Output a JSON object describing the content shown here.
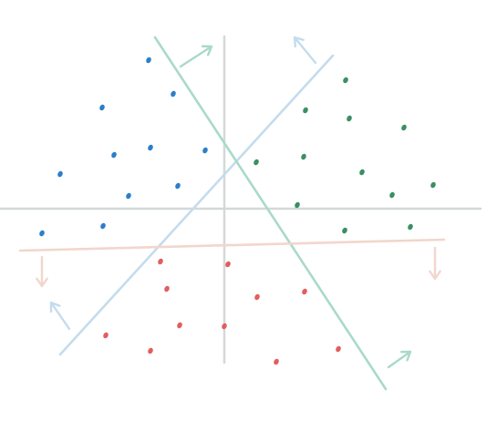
{
  "colors": {
    "background": "#ffffff",
    "axis": "#d4d8d8",
    "blue_class": "#2a7fc8",
    "green_class": "#3a8f63",
    "red_class": "#e35d5d",
    "blue_boundary": "#c4dced",
    "green_boundary": "#a9dac9",
    "red_boundary": "#f2d6cc"
  },
  "classes": [
    {
      "name": "blue",
      "color": "#2a7fc8",
      "points": [
        [
          -83,
          163
        ],
        [
          -56,
          126
        ],
        [
          -134,
          111
        ],
        [
          -121,
          59
        ],
        [
          -81,
          67
        ],
        [
          -21,
          64
        ],
        [
          -180,
          38
        ],
        [
          -105,
          14
        ],
        [
          -51,
          25
        ],
        [
          -133,
          -19
        ],
        [
          -200,
          -27
        ]
      ]
    },
    {
      "name": "green",
      "color": "#3a8f63",
      "points": [
        [
          133,
          141
        ],
        [
          89,
          108
        ],
        [
          137,
          99
        ],
        [
          197,
          89
        ],
        [
          35,
          51
        ],
        [
          87,
          57
        ],
        [
          151,
          40
        ],
        [
          229,
          26
        ],
        [
          184,
          15
        ],
        [
          80,
          4
        ],
        [
          204,
          -20
        ],
        [
          132,
          -24
        ]
      ]
    },
    {
      "name": "red",
      "color": "#e35d5d",
      "points": [
        [
          -70,
          -58
        ],
        [
          4,
          -61
        ],
        [
          -63,
          -88
        ],
        [
          36,
          -97
        ],
        [
          88,
          -91
        ],
        [
          -49,
          -128
        ],
        [
          0,
          -129
        ],
        [
          -130,
          -139
        ],
        [
          -81,
          -156
        ],
        [
          125,
          -154
        ],
        [
          57,
          -168
        ]
      ]
    }
  ],
  "boundaries": [
    {
      "name": "blue-class-boundary",
      "color": "#c4dced",
      "line": [
        [
          -180,
          -160
        ],
        [
          119,
          168
        ]
      ],
      "arrows": [
        {
          "from": [
            100,
            160
          ],
          "to": [
            77,
            188
          ]
        },
        {
          "from": [
            -170,
            -132
          ],
          "to": [
            -190,
            -103
          ]
        }
      ]
    },
    {
      "name": "green-class-boundary",
      "color": "#a9dac9",
      "line": [
        [
          -76,
          188
        ],
        [
          177,
          -198
        ]
      ],
      "arrows": [
        {
          "from": [
            -48,
            156
          ],
          "to": [
            -14,
            178
          ]
        },
        {
          "from": [
            180,
            -174
          ],
          "to": [
            204,
            -157
          ]
        }
      ]
    },
    {
      "name": "red-class-boundary",
      "color": "#f2d6cc",
      "line": [
        [
          -224,
          -46
        ],
        [
          241,
          -34
        ]
      ],
      "arrows": [
        {
          "from": [
            -200,
            -53
          ],
          "to": [
            -200,
            -85
          ]
        },
        {
          "from": [
            231,
            -43
          ],
          "to": [
            231,
            -77
          ]
        }
      ]
    }
  ]
}
